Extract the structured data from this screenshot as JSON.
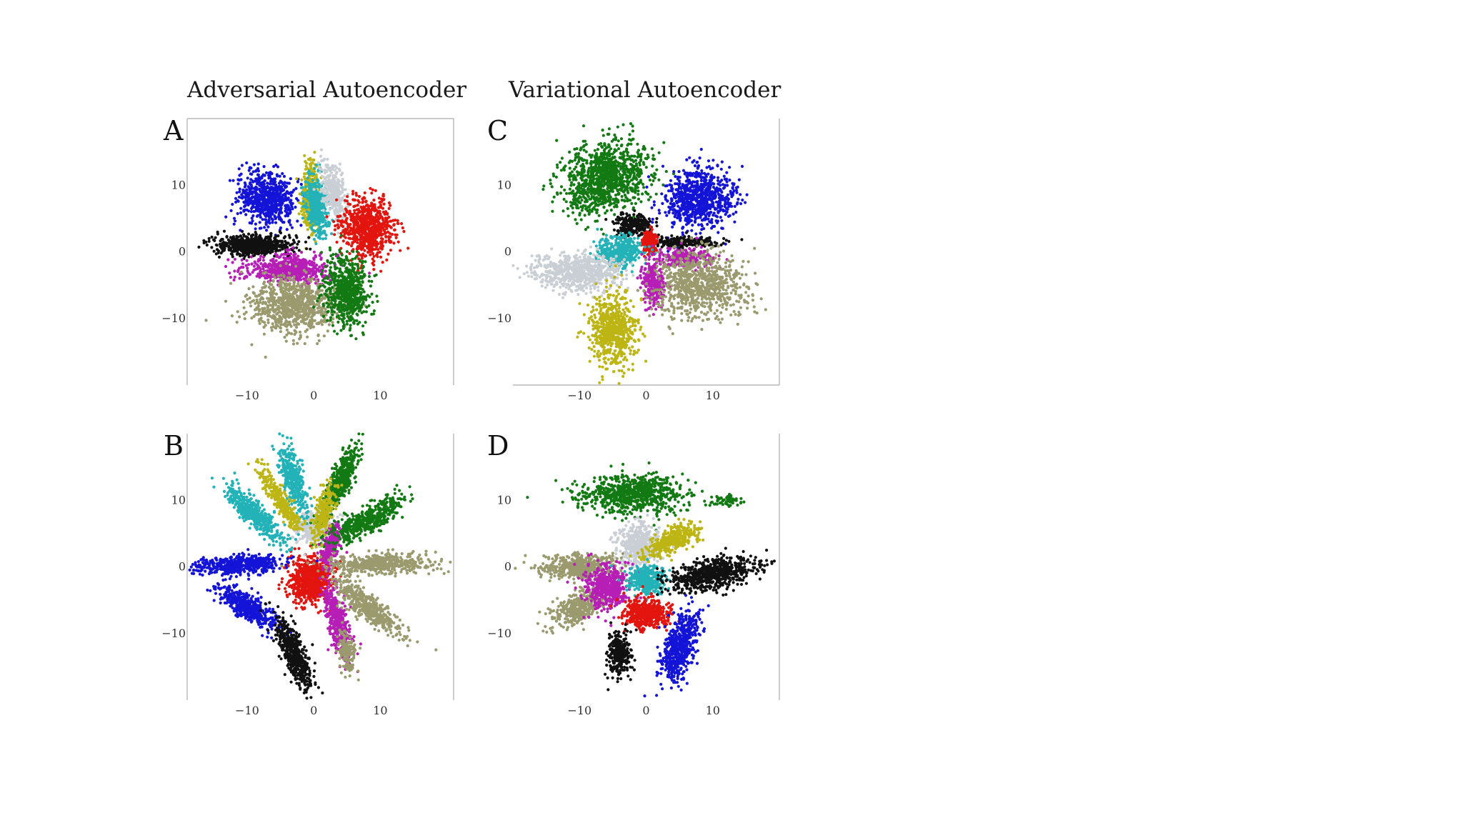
{
  "column_titles": {
    "left": "Adversarial Autoencoder",
    "right": "Variational Autoencoder"
  },
  "colors": {
    "blue": "#1414d8",
    "red": "#e3150f",
    "green": "#137a13",
    "cyan": "#22b2b8",
    "yellow": "#bcb514",
    "magenta": "#b61eb6",
    "black": "#111111",
    "khaki": "#9a9a6e",
    "lightgray": "#c9cfd4"
  },
  "chart_data": [
    {
      "panel": "A",
      "type": "scatter",
      "xlim": [
        -19,
        21
      ],
      "ylim": [
        -20,
        20
      ],
      "xticks": [
        -10,
        0,
        10
      ],
      "yticks": [
        -10,
        0,
        10
      ],
      "axes_lines": [
        "left",
        "top",
        "right"
      ],
      "clusters": [
        {
          "color": "blue",
          "center": [
            -7,
            8
          ],
          "spread": [
            4,
            3.5
          ],
          "angle": -0.4,
          "n": 700
        },
        {
          "color": "yellow",
          "center": [
            -0.5,
            8
          ],
          "spread": [
            1.2,
            4.5
          ],
          "angle": 0,
          "n": 350
        },
        {
          "color": "cyan",
          "center": [
            0.5,
            7
          ],
          "spread": [
            1.5,
            4
          ],
          "angle": 0.1,
          "n": 400
        },
        {
          "color": "lightgray",
          "center": [
            3,
            9
          ],
          "spread": [
            1.5,
            4
          ],
          "angle": 0.2,
          "n": 350
        },
        {
          "color": "red",
          "center": [
            8,
            3.5
          ],
          "spread": [
            3.5,
            4
          ],
          "angle": 0.2,
          "n": 750
        },
        {
          "color": "black",
          "center": [
            -9,
            1
          ],
          "spread": [
            5,
            1.4
          ],
          "angle": 0,
          "n": 650
        },
        {
          "color": "magenta",
          "center": [
            -4,
            -2.5
          ],
          "spread": [
            6,
            1.8
          ],
          "angle": 0,
          "n": 600
        },
        {
          "color": "khaki",
          "center": [
            -3,
            -8
          ],
          "spread": [
            6,
            4
          ],
          "angle": 0,
          "n": 800
        },
        {
          "color": "green",
          "center": [
            5,
            -6
          ],
          "spread": [
            3,
            4.5
          ],
          "angle": 0.1,
          "n": 700
        }
      ]
    },
    {
      "panel": "B",
      "type": "scatter",
      "xlim": [
        -19,
        21
      ],
      "ylim": [
        -20,
        20
      ],
      "xticks": [
        -10,
        0,
        10
      ],
      "yticks": [
        -10,
        0,
        10
      ],
      "axes_lines": [
        "left",
        "right"
      ],
      "clusters": [
        {
          "color": "red",
          "center": [
            -0.5,
            -2
          ],
          "spread": [
            2.8,
            3.2
          ],
          "angle": 0,
          "n": 700
        },
        {
          "color": "lightgray",
          "center": [
            0.5,
            6
          ],
          "spread": [
            3,
            2.5
          ],
          "angle": 0,
          "n": 350
        },
        {
          "color": "blue",
          "center": [
            -11,
            0.3
          ],
          "spread": [
            6,
            1.3
          ],
          "angle": 0.05,
          "n": 500
        },
        {
          "color": "blue",
          "center": [
            -10,
            -6
          ],
          "spread": [
            5,
            1.5
          ],
          "angle": -0.6,
          "n": 500
        },
        {
          "color": "black",
          "center": [
            -3,
            -13
          ],
          "spread": [
            5,
            1.5
          ],
          "angle": -1.2,
          "n": 500
        },
        {
          "color": "magenta",
          "center": [
            3.5,
            -8
          ],
          "spread": [
            5,
            1.3
          ],
          "angle": -1.35,
          "n": 450
        },
        {
          "color": "magenta",
          "center": [
            2.5,
            3
          ],
          "spread": [
            3,
            1.2
          ],
          "angle": 1.3,
          "n": 200
        },
        {
          "color": "khaki",
          "center": [
            8,
            -6
          ],
          "spread": [
            6,
            1.5
          ],
          "angle": -0.7,
          "n": 500
        },
        {
          "color": "khaki",
          "center": [
            10,
            0.5
          ],
          "spread": [
            7,
            1.4
          ],
          "angle": 0.0,
          "n": 500
        },
        {
          "color": "khaki",
          "center": [
            5,
            -13
          ],
          "spread": [
            3,
            1.2
          ],
          "angle": -1.3,
          "n": 150
        },
        {
          "color": "green",
          "center": [
            8,
            7
          ],
          "spread": [
            6,
            1.6
          ],
          "angle": 0.5,
          "n": 500
        },
        {
          "color": "green",
          "center": [
            4,
            13
          ],
          "spread": [
            5,
            1.4
          ],
          "angle": 1.15,
          "n": 450
        },
        {
          "color": "cyan",
          "center": [
            -9,
            8
          ],
          "spread": [
            5,
            1.5
          ],
          "angle": -0.75,
          "n": 450
        },
        {
          "color": "cyan",
          "center": [
            -3,
            13
          ],
          "spread": [
            5,
            1.4
          ],
          "angle": -1.3,
          "n": 400
        },
        {
          "color": "yellow",
          "center": [
            -5,
            10
          ],
          "spread": [
            5,
            1.1
          ],
          "angle": -1.0,
          "n": 300
        },
        {
          "color": "yellow",
          "center": [
            1.5,
            8
          ],
          "spread": [
            4,
            1.2
          ],
          "angle": 1.3,
          "n": 250
        }
      ]
    },
    {
      "panel": "C",
      "type": "scatter",
      "xlim": [
        -20,
        20
      ],
      "ylim": [
        -20,
        20
      ],
      "xticks": [
        -10,
        0,
        10
      ],
      "yticks": [
        -10,
        0,
        10
      ],
      "axes_lines": [
        "right",
        "bottom"
      ],
      "clusters": [
        {
          "color": "green",
          "center": [
            -6,
            11
          ],
          "spread": [
            6,
            4.5
          ],
          "angle": 0.45,
          "n": 1100
        },
        {
          "color": "blue",
          "center": [
            8,
            8
          ],
          "spread": [
            5,
            4
          ],
          "angle": 0.3,
          "n": 800
        },
        {
          "color": "black",
          "center": [
            -2,
            4
          ],
          "spread": [
            2.5,
            1.5
          ],
          "angle": 0,
          "n": 250
        },
        {
          "color": "black",
          "center": [
            6,
            1.5
          ],
          "spread": [
            5,
            0.7
          ],
          "angle": 0,
          "n": 200
        },
        {
          "color": "red",
          "center": [
            0.5,
            1.5
          ],
          "spread": [
            1,
            1.5
          ],
          "angle": 0,
          "n": 200
        },
        {
          "color": "cyan",
          "center": [
            -4,
            0
          ],
          "spread": [
            3,
            2
          ],
          "angle": 0,
          "n": 400
        },
        {
          "color": "lightgray",
          "center": [
            -10,
            -3
          ],
          "spread": [
            6,
            2.5
          ],
          "angle": 0,
          "n": 700
        },
        {
          "color": "magenta",
          "center": [
            1,
            -5
          ],
          "spread": [
            1.5,
            3
          ],
          "angle": 0,
          "n": 300
        },
        {
          "color": "magenta",
          "center": [
            6,
            -1
          ],
          "spread": [
            4,
            1.5
          ],
          "angle": 0,
          "n": 250
        },
        {
          "color": "khaki",
          "center": [
            8,
            -5
          ],
          "spread": [
            6,
            4.5
          ],
          "angle": 0,
          "n": 800
        },
        {
          "color": "yellow",
          "center": [
            -5,
            -12
          ],
          "spread": [
            3,
            5
          ],
          "angle": 0,
          "n": 650
        }
      ]
    },
    {
      "panel": "D",
      "type": "scatter",
      "xlim": [
        -20,
        20
      ],
      "ylim": [
        -20,
        20
      ],
      "xticks": [
        -10,
        0,
        10
      ],
      "yticks": [
        -10,
        0,
        10
      ],
      "axes_lines": [
        "right"
      ],
      "clusters": [
        {
          "color": "green",
          "center": [
            -2,
            11
          ],
          "spread": [
            7,
            2.5
          ],
          "angle": 0,
          "n": 800
        },
        {
          "color": "green",
          "center": [
            12,
            10
          ],
          "spread": [
            2,
            0.8
          ],
          "angle": 0,
          "n": 60
        },
        {
          "color": "lightgray",
          "center": [
            -1,
            3
          ],
          "spread": [
            3,
            3
          ],
          "angle": 0,
          "n": 450
        },
        {
          "color": "yellow",
          "center": [
            4,
            4
          ],
          "spread": [
            4,
            1.5
          ],
          "angle": 0.5,
          "n": 350
        },
        {
          "color": "khaki",
          "center": [
            -10,
            0
          ],
          "spread": [
            5,
            1.6
          ],
          "angle": 0,
          "n": 500
        },
        {
          "color": "khaki",
          "center": [
            -10,
            -6
          ],
          "spread": [
            4,
            1.8
          ],
          "angle": 0.5,
          "n": 400
        },
        {
          "color": "magenta",
          "center": [
            -6,
            -3
          ],
          "spread": [
            3,
            3
          ],
          "angle": 0,
          "n": 500
        },
        {
          "color": "cyan",
          "center": [
            0,
            -2
          ],
          "spread": [
            2.5,
            1.8
          ],
          "angle": 0,
          "n": 350
        },
        {
          "color": "red",
          "center": [
            0,
            -7
          ],
          "spread": [
            3,
            2
          ],
          "angle": 0,
          "n": 500
        },
        {
          "color": "black",
          "center": [
            10,
            -1
          ],
          "spread": [
            6,
            2
          ],
          "angle": 0.2,
          "n": 700
        },
        {
          "color": "black",
          "center": [
            -4,
            -13
          ],
          "spread": [
            1.5,
            3
          ],
          "angle": 0,
          "n": 300
        },
        {
          "color": "blue",
          "center": [
            5,
            -12
          ],
          "spread": [
            2,
            5
          ],
          "angle": -0.3,
          "n": 600
        }
      ]
    }
  ]
}
